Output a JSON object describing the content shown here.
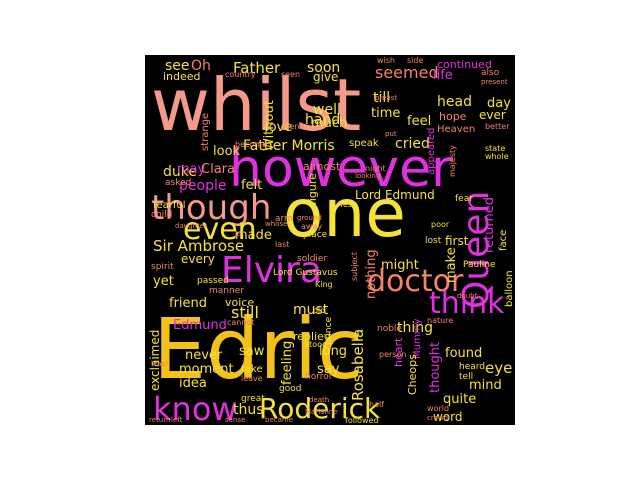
{
  "palette": {
    "background": "#000000",
    "yellow": "#f5e236",
    "gold": "#f2c21a",
    "coral": "#f4836a",
    "salmon": "#f39a8a",
    "magenta": "#e030e0",
    "pink": "#f040c0",
    "orange": "#f5a040"
  },
  "words": [
    "whilst",
    "however",
    "one",
    "Edric",
    "though",
    "Elvira",
    "Queen",
    "even",
    "doctor",
    "think",
    "know",
    "Roderick",
    "Sir Ambrose",
    "Rosabella",
    "Father",
    "Father Morris",
    "seemed",
    "hand",
    "soon",
    "see",
    "Oh",
    "indeed",
    "give",
    "well",
    "much",
    "time",
    "head",
    "day",
    "ever",
    "hope",
    "life",
    "continued",
    "also",
    "present",
    "Without",
    "love",
    "duke",
    "look",
    "may",
    "Clara",
    "cried",
    "speak",
    "felt",
    "Lord Edmund",
    "returned",
    "people",
    "made",
    "almost",
    "might",
    "nothing",
    "every",
    "yet",
    "make",
    "first",
    "lost",
    "friend",
    "voice",
    "must",
    "still",
    "thing",
    "Edmund",
    "exclaimed",
    "replied",
    "feeling",
    "heart",
    "thought",
    "Mummy",
    "eye",
    "found",
    "mind",
    "long",
    "say",
    "never",
    "moment",
    "saw",
    "thus",
    "idea",
    "quite",
    "word",
    "Cheops",
    "Lord Gustavus",
    "King",
    "Pauline",
    "place",
    "away",
    "soldier",
    "old",
    "poor",
    "fear",
    "wish",
    "side",
    "till",
    "feel",
    "appeared",
    "country",
    "seen",
    "scene",
    "Heaven",
    "better",
    "strange",
    "become",
    "figure",
    "manner",
    "spirit",
    "passed",
    "arm",
    "cannot",
    "nature",
    "doubt",
    "balloon",
    "great",
    "take",
    "leave",
    "heard",
    "tell",
    "death",
    "person",
    "stood",
    "noble",
    "good",
    "horror",
    "half",
    "world",
    "crowd",
    "return",
    "left",
    "sense",
    "became",
    "Marianne",
    "followed",
    "child",
    "fearful",
    "daughter",
    "asked",
    "state",
    "whole",
    "majesty",
    "face",
    "subject",
    "prince",
    "looking",
    "breast",
    "put",
    "night",
    "Yes",
    "ground",
    "whose",
    "let",
    "last",
    "least"
  ]
}
